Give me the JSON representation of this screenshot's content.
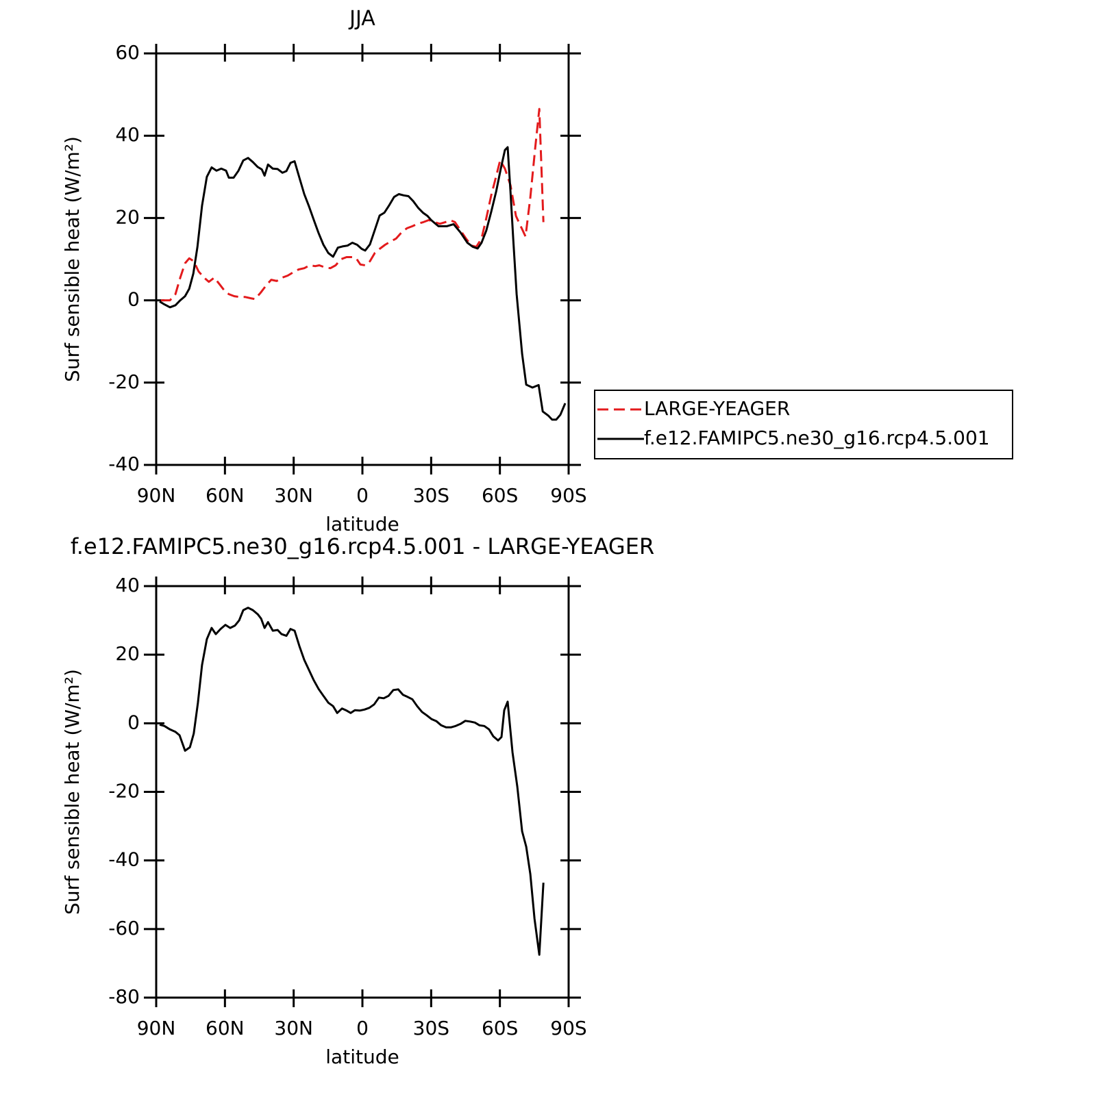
{
  "chart_data": [
    {
      "type": "line",
      "title": "JJA",
      "x_label": "latitude",
      "y_label": "Surf sensible heat (W/m²)",
      "xlim": [
        90,
        -90
      ],
      "ylim": [
        -40,
        60
      ],
      "xticks": [
        {
          "value": 90,
          "label": "90N"
        },
        {
          "value": 60,
          "label": "60N"
        },
        {
          "value": 30,
          "label": "30N"
        },
        0,
        {
          "value": -30,
          "label": "30S"
        },
        {
          "value": -60,
          "label": "60S"
        },
        {
          "value": -90,
          "label": "90S"
        }
      ],
      "yticks": [
        -40,
        -20,
        0,
        20,
        40,
        60
      ],
      "legend": "outside-right",
      "series": [
        {
          "name": "LARGE-YEAGER",
          "color": "#e31a1c",
          "dashed": true,
          "x": [
            87.9,
            84,
            81.6,
            79.5,
            77.4,
            75.6,
            73.6,
            71.5,
            69.1,
            67,
            64.6,
            62.5,
            60.4,
            58.3,
            55.9,
            53.5,
            51.1,
            48.7,
            46.9,
            44.5,
            42.2,
            39.8,
            37.4,
            35,
            32.6,
            30.2,
            27.8,
            25.4,
            23,
            20.6,
            18.8,
            16.4,
            14,
            11.7,
            9.3,
            6.9,
            4.5,
            2.7,
            0.9,
            -1.2,
            -3.3,
            -5.4,
            -7.5,
            -9.9,
            -12.3,
            -14.7,
            -17.1,
            -19.4,
            -21.8,
            -24.2,
            -26.6,
            -29,
            -31.4,
            -33.8,
            -36.2,
            -38.6,
            -40.4,
            -42.8,
            -45.2,
            -47.6,
            -49.7,
            -52,
            -54.1,
            -56.2,
            -58.3,
            -60.1,
            -62.2,
            -64.6,
            -67,
            -69.1,
            -71.2,
            -73.3,
            -75.4,
            -77.2,
            -79
          ],
          "values": [
            0,
            0,
            1.5,
            5.5,
            9,
            10.2,
            9.5,
            7,
            5.5,
            4.5,
            5.5,
            4,
            2.5,
            1.5,
            1,
            0.8,
            0.8,
            0.5,
            0.3,
            1.8,
            3.5,
            5,
            4.7,
            5.5,
            6,
            6.8,
            7.5,
            7.8,
            8.5,
            8.3,
            8.5,
            8,
            7.8,
            8.5,
            10,
            10.5,
            10.5,
            10.2,
            8.7,
            8.5,
            9.5,
            11.5,
            12.5,
            13.5,
            14.3,
            15,
            16.5,
            17.5,
            18,
            18.6,
            19,
            19.5,
            19,
            18.6,
            19,
            19.4,
            19,
            17,
            15,
            13.3,
            13,
            15,
            20,
            25.5,
            30,
            34,
            32,
            28,
            20.5,
            18,
            15.5,
            25,
            37,
            46.5,
            19
          ]
        },
        {
          "name": "f.e12.FAMIPC5.ne30_g16.rcp4.5.001",
          "color": "#000000",
          "dashed": false,
          "x": [
            88.5,
            86.4,
            84,
            81.6,
            79.5,
            77.4,
            75.6,
            73.8,
            72,
            70,
            67.9,
            65.8,
            63.7,
            61.6,
            59.5,
            58.3,
            56.2,
            54.1,
            52,
            49.9,
            47.8,
            45.7,
            43.9,
            42.7,
            41.2,
            39.1,
            37,
            34.9,
            33.2,
            31.4,
            29.6,
            27.5,
            25.4,
            23.3,
            21.2,
            19.1,
            17,
            14.9,
            12.8,
            10.7,
            8.7,
            6.5,
            4.4,
            2.3,
            0.3,
            -1.2,
            -3.3,
            -5.4,
            -7.5,
            -9.6,
            -11.7,
            -13.8,
            -15.9,
            -18,
            -20.1,
            -22.2,
            -24.3,
            -26.4,
            -28.4,
            -30,
            -33.2,
            -36.8,
            -39.8,
            -42.8,
            -45.8,
            -48.2,
            -50.3,
            -52,
            -54.1,
            -56.2,
            -58.4,
            -60.4,
            -62.2,
            -63.4,
            -64.6,
            -65.8,
            -67.3,
            -69.7,
            -71.5,
            -74.2,
            -76.9,
            -78.7,
            -81.1,
            -82.8,
            -84.6,
            -86.4,
            -88.5
          ],
          "values": [
            -0.3,
            -1,
            -1.7,
            -1.2,
            0,
            1,
            2.8,
            6.5,
            13,
            23,
            30,
            32.3,
            31.5,
            32,
            31.5,
            29.8,
            29.8,
            31.5,
            34,
            34.6,
            33.6,
            32.4,
            31.8,
            30.3,
            33,
            32,
            31.9,
            31,
            31.4,
            33.4,
            33.8,
            29.8,
            25.8,
            22.8,
            19.5,
            16.3,
            13.5,
            11.5,
            10.6,
            12.8,
            13.1,
            13.3,
            14,
            13.5,
            12.5,
            12.1,
            13.6,
            17.1,
            20.6,
            21.3,
            23.1,
            25.1,
            25.8,
            25.5,
            25.3,
            24.1,
            22.5,
            21.3,
            20.5,
            19.5,
            18,
            18,
            18.5,
            16.5,
            14,
            13,
            12.6,
            14,
            17,
            21.5,
            26.5,
            32,
            36.5,
            37.2,
            26.5,
            15,
            1.5,
            -13,
            -20.5,
            -21.2,
            -20.6,
            -27,
            -28,
            -29,
            -29,
            -27.8,
            -25
          ]
        }
      ]
    },
    {
      "type": "line",
      "title": "f.e12.FAMIPC5.ne30_g16.rcp4.5.001 - LARGE-YEAGER",
      "x_label": "latitude",
      "y_label": "Surf sensible heat (W/m²)",
      "xlim": [
        90,
        -90
      ],
      "ylim": [
        -80,
        40
      ],
      "xticks": [
        {
          "value": 90,
          "label": "90N"
        },
        {
          "value": 60,
          "label": "60N"
        },
        {
          "value": 30,
          "label": "30N"
        },
        0,
        {
          "value": -30,
          "label": "30S"
        },
        {
          "value": -60,
          "label": "60S"
        },
        {
          "value": -90,
          "label": "90S"
        }
      ],
      "yticks": [
        -80,
        -60,
        -40,
        -20,
        0,
        20,
        40
      ],
      "series": [
        {
          "color": "#000000",
          "dashed": false,
          "x": [
            88.5,
            86.4,
            84,
            81.6,
            79.8,
            77.4,
            75.3,
            73.6,
            71.8,
            70,
            67.9,
            65.8,
            64,
            61.9,
            59.8,
            57.7,
            55.6,
            53.8,
            52,
            49.9,
            47.8,
            45.7,
            44.2,
            42.7,
            41.2,
            39.1,
            37,
            35.3,
            33.2,
            31.4,
            29.6,
            27.5,
            25.4,
            23.3,
            21.2,
            19.1,
            17,
            14.9,
            12.8,
            11,
            8.9,
            6.9,
            5.1,
            3.3,
            1.2,
            -0.9,
            -3,
            -5.1,
            -7.2,
            -9.3,
            -11.4,
            -13.5,
            -15.6,
            -17.7,
            -19.7,
            -21.8,
            -23.9,
            -26,
            -28.1,
            -30.2,
            -32.3,
            -34.4,
            -36.5,
            -38.6,
            -40.7,
            -42.8,
            -44.9,
            -47,
            -49.1,
            -51.1,
            -53.2,
            -55.3,
            -57.1,
            -59.2,
            -60.7,
            -61.9,
            -63.4,
            -65.5,
            -67.6,
            -69.7,
            -71.5,
            -73.3,
            -75.1,
            -77.2,
            -79
          ],
          "values": [
            -0.4,
            -0.8,
            -1.8,
            -2.5,
            -3.5,
            -8,
            -7,
            -3,
            6,
            17,
            24.5,
            27.8,
            26,
            27.5,
            28.7,
            27.8,
            28.5,
            30,
            33,
            33.7,
            33,
            31.8,
            30.5,
            27.8,
            29.5,
            27,
            27.2,
            26,
            25.5,
            27.5,
            27,
            22.5,
            18.5,
            15.5,
            12.5,
            10,
            8,
            6,
            5,
            3,
            4.3,
            3.7,
            3,
            3.8,
            3.7,
            4,
            4.5,
            5.5,
            7.5,
            7.3,
            8,
            9.7,
            9.9,
            8.3,
            7.7,
            7,
            5,
            3.3,
            2.3,
            1.2,
            0.6,
            -0.6,
            -1.2,
            -1.2,
            -0.8,
            -0.2,
            0.7,
            0.5,
            0.2,
            -0.6,
            -0.8,
            -1.8,
            -3.8,
            -5,
            -4,
            3.8,
            6.3,
            -8.5,
            -18.5,
            -31.5,
            -36,
            -44,
            -57,
            -67.5,
            -46.5
          ]
        }
      ]
    }
  ]
}
